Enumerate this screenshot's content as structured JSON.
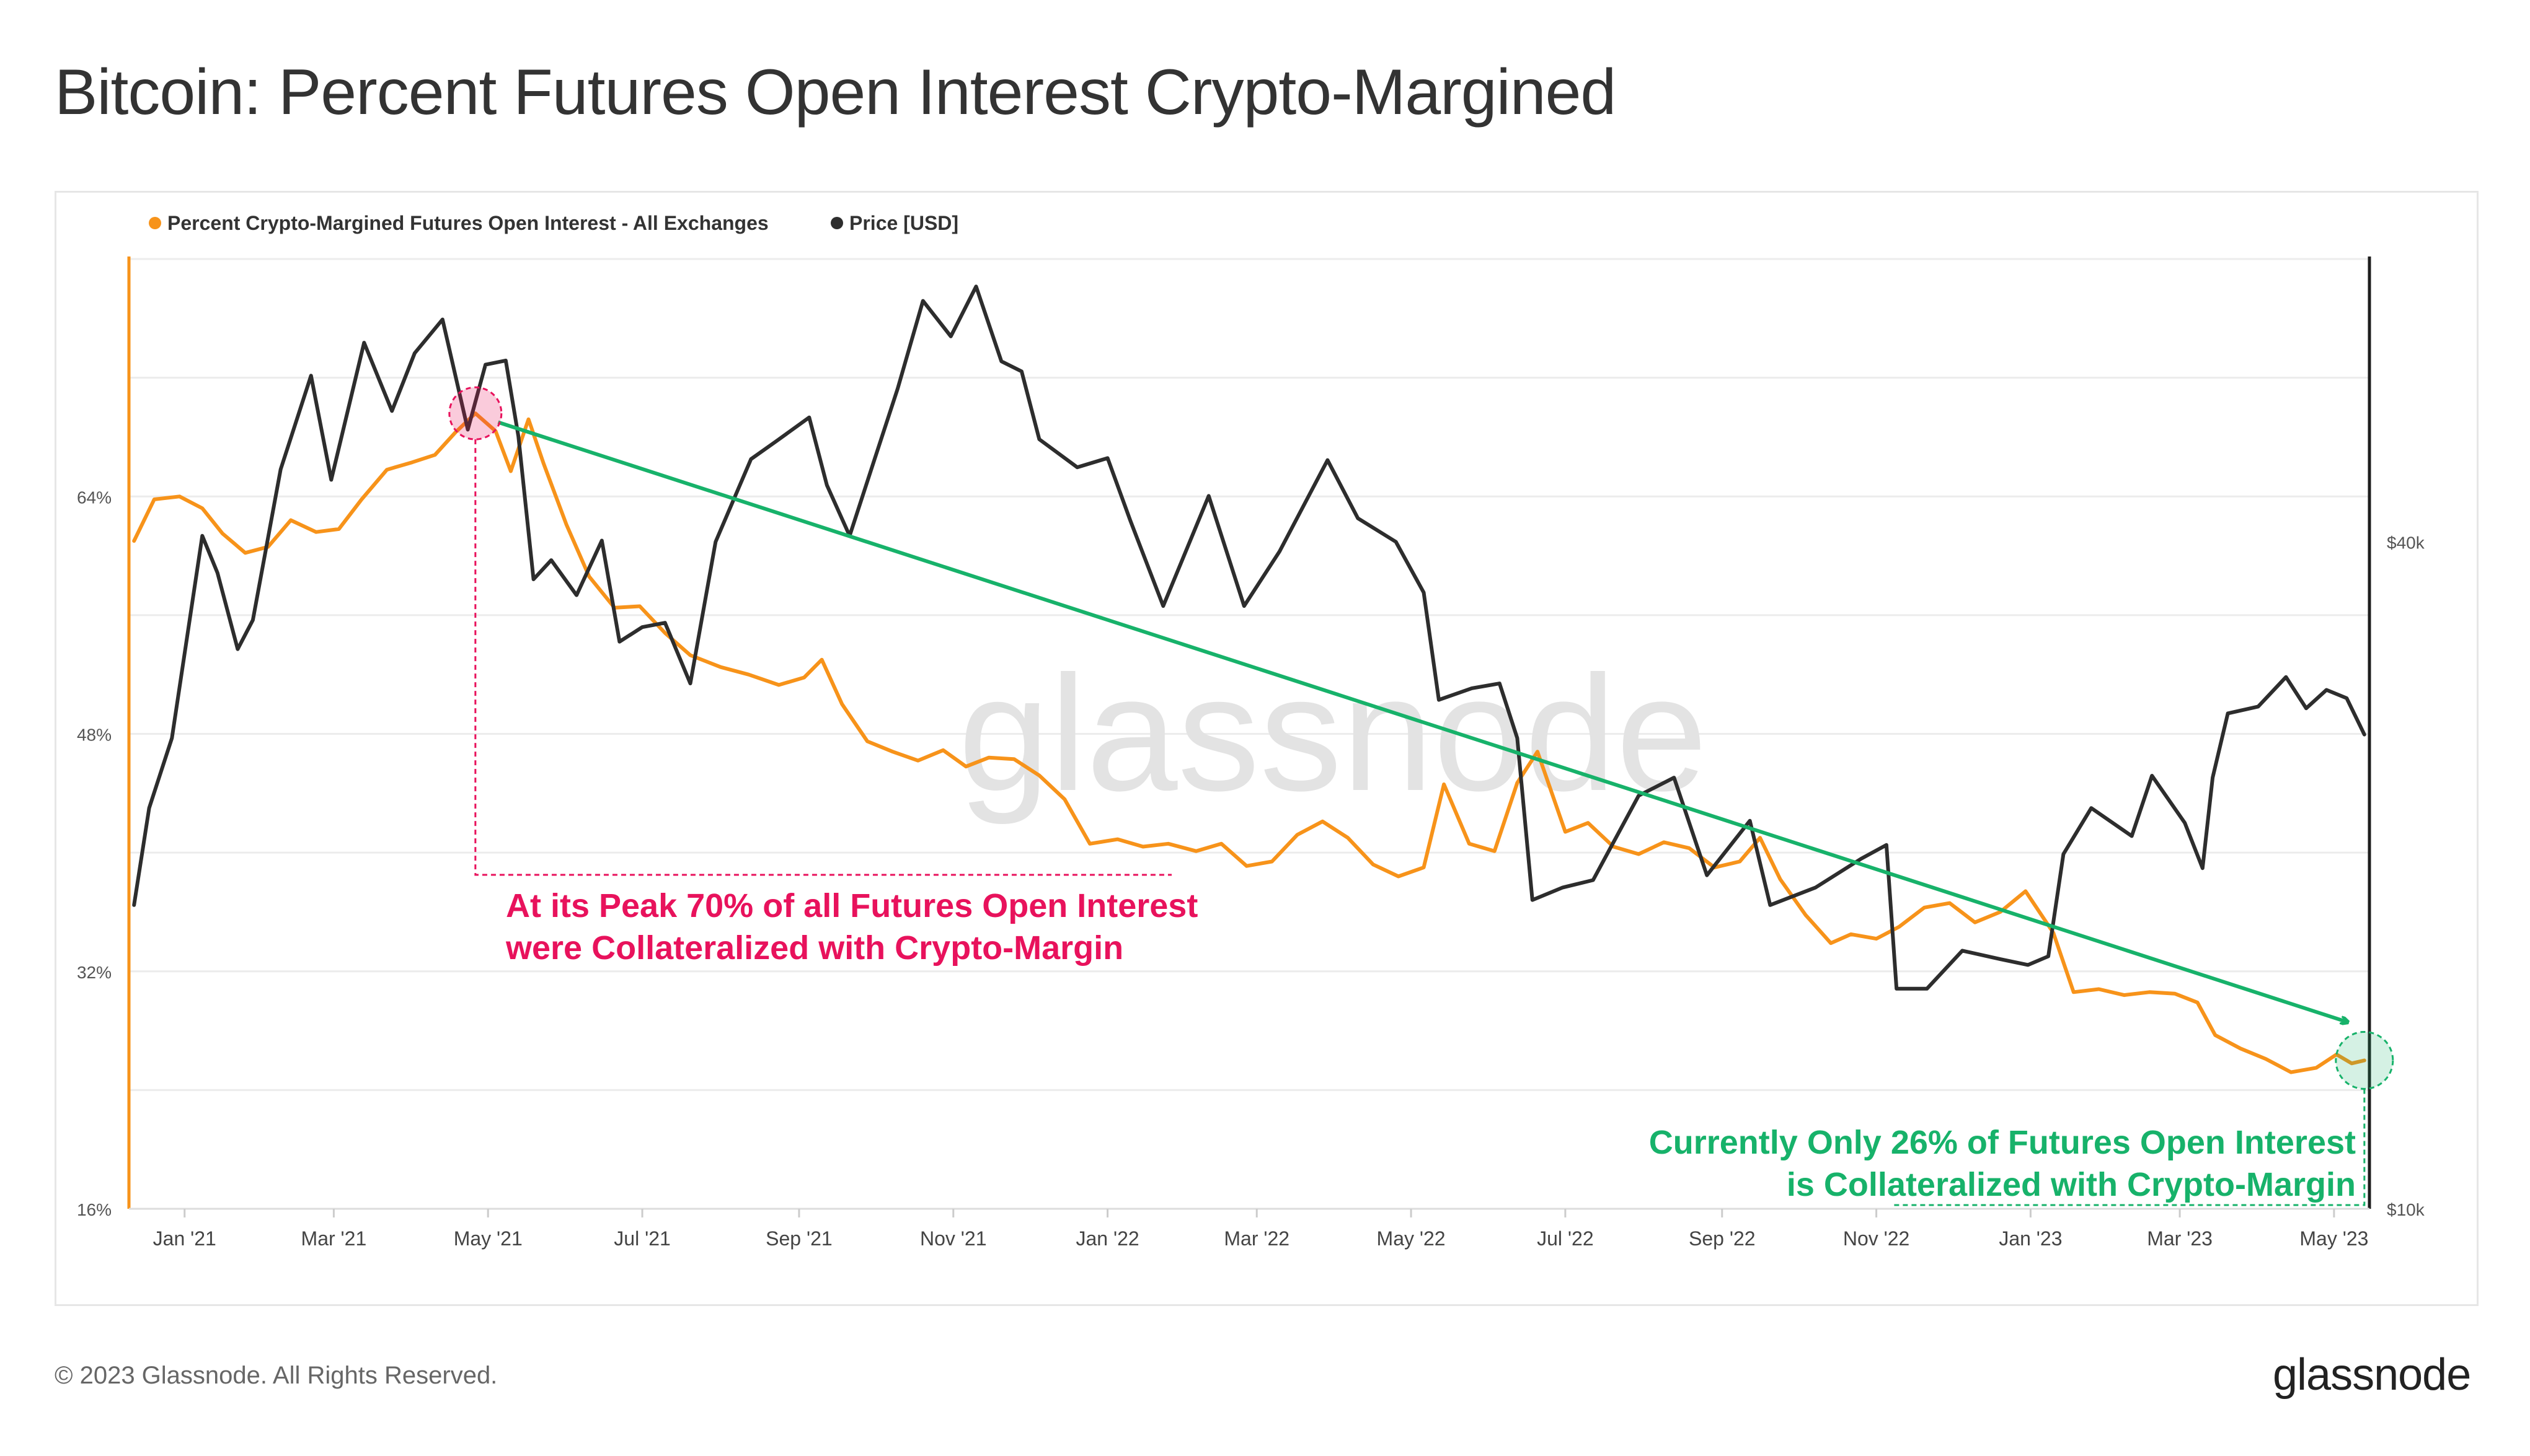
{
  "page": {
    "title": "Bitcoin: Percent Futures Open Interest Crypto-Margined",
    "copyright": "© 2023 Glassnode. All Rights Reserved.",
    "brand": "glassnode",
    "watermark": "glassnode"
  },
  "chart_data": {
    "type": "line",
    "title": "Bitcoin: Percent Futures Open Interest Crypto-Margined",
    "legend": {
      "placement": "top-left",
      "entries": [
        {
          "name": "Percent Crypto-Margined Futures Open Interest - All Exchanges",
          "color": "#f7931a"
        },
        {
          "name": "Price [USD]",
          "color": "#2d2d2d"
        }
      ]
    },
    "x_axis": {
      "type": "date",
      "range": [
        "2020-12-10",
        "2023-05-15"
      ],
      "ticks": [
        {
          "label": "Jan '21",
          "date": "2021-01-01"
        },
        {
          "label": "Mar '21",
          "date": "2021-03-01"
        },
        {
          "label": "May '21",
          "date": "2021-05-01"
        },
        {
          "label": "Jul '21",
          "date": "2021-07-01"
        },
        {
          "label": "Sep '21",
          "date": "2021-09-01"
        },
        {
          "label": "Nov '21",
          "date": "2021-11-01"
        },
        {
          "label": "Jan '22",
          "date": "2022-01-01"
        },
        {
          "label": "Mar '22",
          "date": "2022-03-01"
        },
        {
          "label": "May '22",
          "date": "2022-05-01"
        },
        {
          "label": "Jul '22",
          "date": "2022-07-01"
        },
        {
          "label": "Sep '22",
          "date": "2022-09-01"
        },
        {
          "label": "Nov '22",
          "date": "2022-11-01"
        },
        {
          "label": "Jan '23",
          "date": "2023-01-01"
        },
        {
          "label": "Mar '23",
          "date": "2023-03-01"
        },
        {
          "label": "May '23",
          "date": "2023-05-01"
        }
      ]
    },
    "y_left": {
      "unit": "percent",
      "range": [
        16,
        80
      ],
      "ticks": [
        {
          "label": "16%",
          "value": 16
        },
        {
          "label": "32%",
          "value": 32
        },
        {
          "label": "48%",
          "value": 48
        },
        {
          "label": "64%",
          "value": 64
        }
      ],
      "color": "#f7931a"
    },
    "y_right": {
      "unit": "USD",
      "scale": "log",
      "range": [
        10000,
        72000
      ],
      "ticks": [
        {
          "label": "$10k",
          "value": 10000
        },
        {
          "label": "$40k",
          "value": 40000
        }
      ],
      "color": "#2d2d2d"
    },
    "grid": true,
    "series": [
      {
        "name": "Percent Crypto-Margined Futures Open Interest - All Exchanges",
        "axis": "left",
        "color": "#f7931a",
        "points": [
          [
            "2020-12-12",
            61
          ],
          [
            "2020-12-20",
            63.8
          ],
          [
            "2020-12-30",
            64
          ],
          [
            "2021-01-08",
            63.2
          ],
          [
            "2021-01-16",
            61.5
          ],
          [
            "2021-01-25",
            60.2
          ],
          [
            "2021-02-03",
            60.6
          ],
          [
            "2021-02-12",
            62.4
          ],
          [
            "2021-02-22",
            61.6
          ],
          [
            "2021-03-03",
            61.8
          ],
          [
            "2021-03-12",
            63.8
          ],
          [
            "2021-03-22",
            65.8
          ],
          [
            "2021-04-01",
            66.3
          ],
          [
            "2021-04-10",
            66.8
          ],
          [
            "2021-04-18",
            68.3
          ],
          [
            "2021-04-26",
            69.6
          ],
          [
            "2021-05-04",
            68.4
          ],
          [
            "2021-05-10",
            65.7
          ],
          [
            "2021-05-17",
            69.2
          ],
          [
            "2021-05-23",
            66.2
          ],
          [
            "2021-06-01",
            62.1
          ],
          [
            "2021-06-10",
            58.6
          ],
          [
            "2021-06-20",
            56.5
          ],
          [
            "2021-06-30",
            56.6
          ],
          [
            "2021-07-10",
            54.8
          ],
          [
            "2021-07-20",
            53.3
          ],
          [
            "2021-08-01",
            52.5
          ],
          [
            "2021-08-12",
            52.0
          ],
          [
            "2021-08-24",
            51.3
          ],
          [
            "2021-09-03",
            51.8
          ],
          [
            "2021-09-10",
            53.0
          ],
          [
            "2021-09-18",
            50.0
          ],
          [
            "2021-09-28",
            47.5
          ],
          [
            "2021-10-08",
            46.8
          ],
          [
            "2021-10-18",
            46.2
          ],
          [
            "2021-10-28",
            46.9
          ],
          [
            "2021-11-06",
            45.8
          ],
          [
            "2021-11-15",
            46.4
          ],
          [
            "2021-11-25",
            46.3
          ],
          [
            "2021-12-05",
            45.2
          ],
          [
            "2021-12-15",
            43.6
          ],
          [
            "2021-12-25",
            40.6
          ],
          [
            "2022-01-05",
            40.9
          ],
          [
            "2022-01-15",
            40.4
          ],
          [
            "2022-01-25",
            40.6
          ],
          [
            "2022-02-05",
            40.1
          ],
          [
            "2022-02-15",
            40.6
          ],
          [
            "2022-02-25",
            39.1
          ],
          [
            "2022-03-07",
            39.4
          ],
          [
            "2022-03-17",
            41.2
          ],
          [
            "2022-03-27",
            42.1
          ],
          [
            "2022-04-06",
            41.0
          ],
          [
            "2022-04-16",
            39.2
          ],
          [
            "2022-04-26",
            38.4
          ],
          [
            "2022-05-06",
            39.0
          ],
          [
            "2022-05-14",
            44.6
          ],
          [
            "2022-05-24",
            40.6
          ],
          [
            "2022-06-03",
            40.1
          ],
          [
            "2022-06-12",
            44.7
          ],
          [
            "2022-06-20",
            46.8
          ],
          [
            "2022-07-01",
            41.4
          ],
          [
            "2022-07-10",
            42.0
          ],
          [
            "2022-07-20",
            40.4
          ],
          [
            "2022-07-30",
            39.9
          ],
          [
            "2022-08-09",
            40.7
          ],
          [
            "2022-08-19",
            40.3
          ],
          [
            "2022-08-29",
            39.0
          ],
          [
            "2022-09-08",
            39.4
          ],
          [
            "2022-09-16",
            41.0
          ],
          [
            "2022-09-24",
            38.2
          ],
          [
            "2022-10-04",
            35.8
          ],
          [
            "2022-10-14",
            33.9
          ],
          [
            "2022-10-22",
            34.5
          ],
          [
            "2022-11-01",
            34.2
          ],
          [
            "2022-11-10",
            35.0
          ],
          [
            "2022-11-20",
            36.3
          ],
          [
            "2022-11-30",
            36.6
          ],
          [
            "2022-12-10",
            35.3
          ],
          [
            "2022-12-20",
            36.0
          ],
          [
            "2022-12-30",
            37.4
          ],
          [
            "2023-01-10",
            34.6
          ],
          [
            "2023-01-18",
            30.6
          ],
          [
            "2023-01-28",
            30.8
          ],
          [
            "2023-02-07",
            30.4
          ],
          [
            "2023-02-17",
            30.6
          ],
          [
            "2023-02-27",
            30.5
          ],
          [
            "2023-03-08",
            29.9
          ],
          [
            "2023-03-15",
            27.7
          ],
          [
            "2023-03-25",
            26.8
          ],
          [
            "2023-04-04",
            26.1
          ],
          [
            "2023-04-14",
            25.2
          ],
          [
            "2023-04-24",
            25.5
          ],
          [
            "2023-05-02",
            26.4
          ],
          [
            "2023-05-08",
            25.8
          ],
          [
            "2023-05-13",
            26.0
          ]
        ]
      },
      {
        "name": "Price [USD]",
        "axis": "right",
        "color": "#2d2d2d",
        "points": [
          [
            "2020-12-12",
            18800
          ],
          [
            "2020-12-18",
            23000
          ],
          [
            "2020-12-27",
            26600
          ],
          [
            "2021-01-08",
            40500
          ],
          [
            "2021-01-14",
            37500
          ],
          [
            "2021-01-22",
            32000
          ],
          [
            "2021-01-28",
            34000
          ],
          [
            "2021-02-08",
            46500
          ],
          [
            "2021-02-20",
            56500
          ],
          [
            "2021-02-28",
            45500
          ],
          [
            "2021-03-13",
            60500
          ],
          [
            "2021-03-24",
            52500
          ],
          [
            "2021-04-02",
            59200
          ],
          [
            "2021-04-13",
            63500
          ],
          [
            "2021-04-23",
            50500
          ],
          [
            "2021-04-30",
            57800
          ],
          [
            "2021-05-08",
            58300
          ],
          [
            "2021-05-13",
            49800
          ],
          [
            "2021-05-19",
            37000
          ],
          [
            "2021-05-26",
            38500
          ],
          [
            "2021-06-05",
            35800
          ],
          [
            "2021-06-15",
            40100
          ],
          [
            "2021-06-22",
            32500
          ],
          [
            "2021-07-01",
            33500
          ],
          [
            "2021-07-10",
            33800
          ],
          [
            "2021-07-20",
            29800
          ],
          [
            "2021-07-30",
            40000
          ],
          [
            "2021-08-13",
            47500
          ],
          [
            "2021-08-23",
            49300
          ],
          [
            "2021-09-05",
            51800
          ],
          [
            "2021-09-12",
            45000
          ],
          [
            "2021-09-21",
            40500
          ],
          [
            "2021-10-01",
            47600
          ],
          [
            "2021-10-10",
            55000
          ],
          [
            "2021-10-20",
            66000
          ],
          [
            "2021-10-31",
            61300
          ],
          [
            "2021-11-10",
            68000
          ],
          [
            "2021-11-20",
            58200
          ],
          [
            "2021-11-28",
            57000
          ],
          [
            "2021-12-05",
            49500
          ],
          [
            "2021-12-20",
            46700
          ],
          [
            "2022-01-01",
            47600
          ],
          [
            "2022-01-10",
            41800
          ],
          [
            "2022-01-23",
            35000
          ],
          [
            "2022-02-10",
            44000
          ],
          [
            "2022-02-24",
            35000
          ],
          [
            "2022-03-10",
            39200
          ],
          [
            "2022-03-29",
            47400
          ],
          [
            "2022-04-10",
            42000
          ],
          [
            "2022-04-25",
            40000
          ],
          [
            "2022-05-06",
            36000
          ],
          [
            "2022-05-12",
            28800
          ],
          [
            "2022-05-25",
            29500
          ],
          [
            "2022-06-05",
            29800
          ],
          [
            "2022-06-12",
            26600
          ],
          [
            "2022-06-18",
            19000
          ],
          [
            "2022-06-30",
            19500
          ],
          [
            "2022-07-12",
            19800
          ],
          [
            "2022-07-30",
            23600
          ],
          [
            "2022-08-13",
            24500
          ],
          [
            "2022-08-26",
            20000
          ],
          [
            "2022-09-12",
            22400
          ],
          [
            "2022-09-20",
            18800
          ],
          [
            "2022-10-08",
            19500
          ],
          [
            "2022-10-26",
            20700
          ],
          [
            "2022-11-05",
            21300
          ],
          [
            "2022-11-09",
            15800
          ],
          [
            "2022-11-21",
            15800
          ],
          [
            "2022-12-05",
            17100
          ],
          [
            "2022-12-20",
            16800
          ],
          [
            "2022-12-31",
            16600
          ],
          [
            "2023-01-08",
            16900
          ],
          [
            "2023-01-14",
            20900
          ],
          [
            "2023-01-25",
            23000
          ],
          [
            "2023-02-10",
            21700
          ],
          [
            "2023-02-18",
            24600
          ],
          [
            "2023-03-03",
            22300
          ],
          [
            "2023-03-10",
            20300
          ],
          [
            "2023-03-14",
            24500
          ],
          [
            "2023-03-20",
            28000
          ],
          [
            "2023-04-01",
            28400
          ],
          [
            "2023-04-12",
            30200
          ],
          [
            "2023-04-20",
            28300
          ],
          [
            "2023-04-28",
            29400
          ],
          [
            "2023-05-06",
            28900
          ],
          [
            "2023-05-13",
            26800
          ]
        ]
      }
    ],
    "annotations": [
      {
        "text_lines": [
          "At its Peak 70% of all Futures Open Interest",
          "were Collateralized with Crypto-Margin"
        ],
        "color": "#e8125c",
        "marker": {
          "date": "2021-04-26",
          "value": 69.6,
          "axis": "left"
        }
      },
      {
        "text_lines": [
          "Currently Only 26% of Futures Open Interest",
          "is Collateralized with Crypto-Margin"
        ],
        "color": "#17b26a",
        "marker": {
          "date": "2023-05-13",
          "value": 26.0,
          "axis": "left"
        }
      }
    ],
    "trend_arrow": {
      "color": "#17b26a",
      "from": {
        "date": "2021-05-05",
        "value": 69.0,
        "axis": "left"
      },
      "to": {
        "date": "2023-05-06",
        "value": 28.6,
        "axis": "left"
      }
    }
  }
}
